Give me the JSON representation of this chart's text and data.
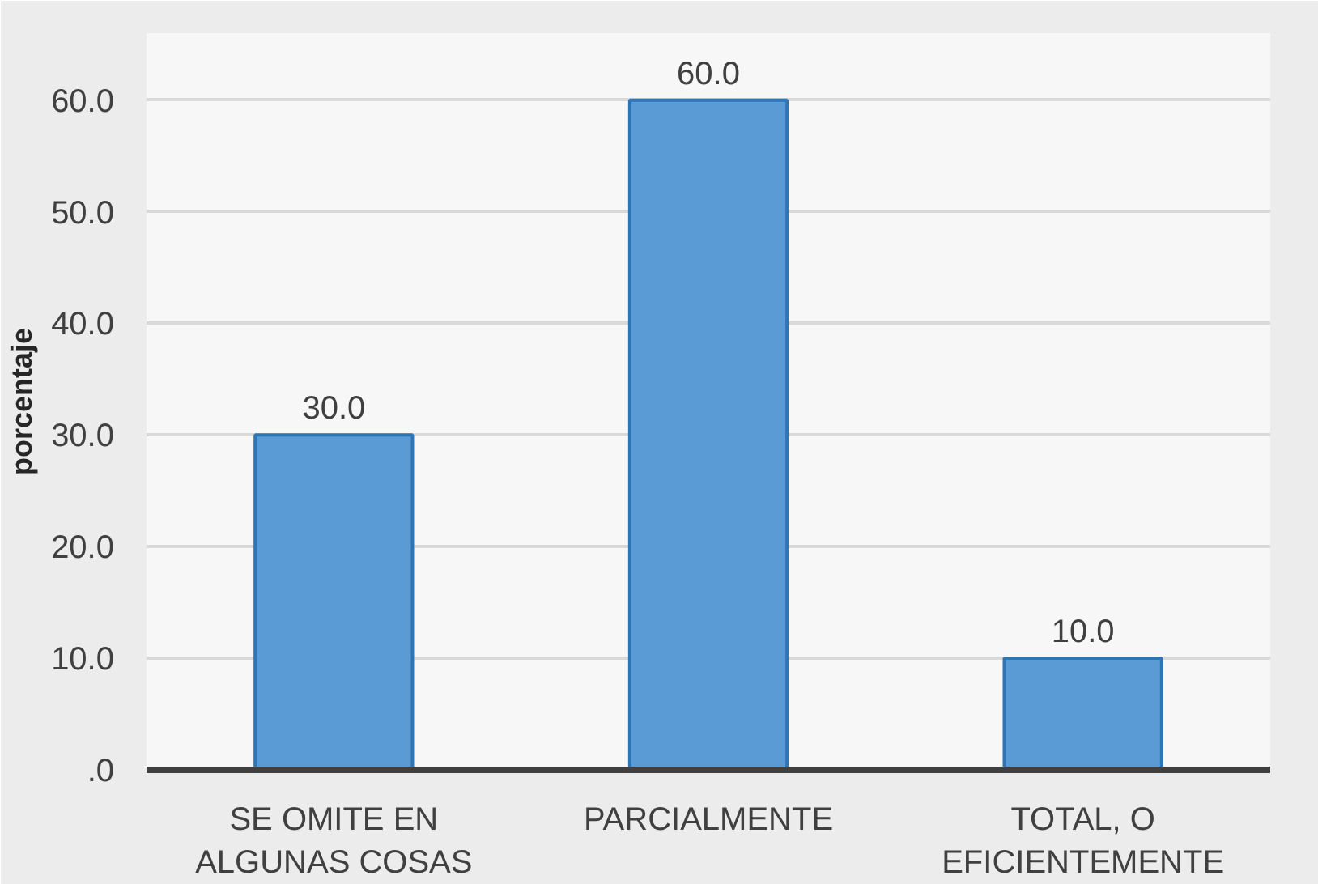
{
  "chart_data": {
    "type": "bar",
    "ylabel": "porcentaje",
    "categories": [
      "SE OMITE EN ALGUNAS COSAS",
      "PARCIALMENTE",
      "TOTAL, O EFICIENTEMENTE"
    ],
    "values": [
      30,
      60,
      10
    ],
    "value_labels": [
      "30.0",
      "60.0",
      "10.0"
    ],
    "color": "#5b9bd5",
    "ylim": [
      0,
      66
    ],
    "yticks": [
      {
        "value": 0,
        "label": ".0"
      },
      {
        "value": 10,
        "label": "10.0"
      },
      {
        "value": 20,
        "label": "20.0"
      },
      {
        "value": 30,
        "label": "30.0"
      },
      {
        "value": 40,
        "label": "40.0"
      },
      {
        "value": 50,
        "label": "50.0"
      },
      {
        "value": 60,
        "label": "60.0"
      }
    ],
    "grid": "y"
  }
}
